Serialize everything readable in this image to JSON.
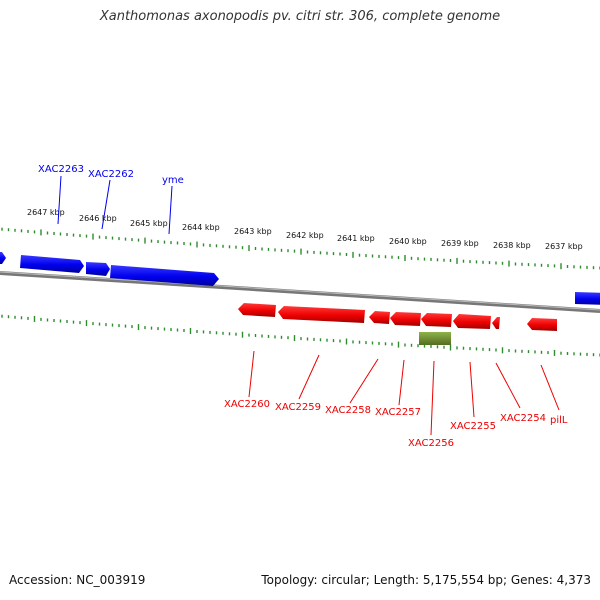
{
  "title": "Xanthomonas axonopodis pv. citri str. 306, complete genome",
  "footer": {
    "accession": "Accession: NC_003919",
    "stats": "Topology: circular; Length: 5,175,554 bp; Genes: 4,373"
  },
  "scale_labels": [
    "2647 kbp",
    "2646 kbp",
    "2645 kbp",
    "2644 kbp",
    "2643 kbp",
    "2642 kbp",
    "2641 kbp",
    "2640 kbp",
    "2639 kbp",
    "2638 kbp",
    "2637 kbp"
  ],
  "colors": {
    "forward_strand": "#0000ee",
    "reverse_strand": "#ee0000",
    "rna_feature": "#6b8e23",
    "ticks": "#2e8b2e",
    "backbone": "#888888"
  },
  "forward_genes": [
    "XAC2263",
    "XAC2262",
    "yme"
  ],
  "reverse_genes": [
    "XAC2260",
    "XAC2259",
    "XAC2258",
    "XAC2257",
    "XAC2256",
    "XAC2255",
    "XAC2254",
    "pilL"
  ]
}
